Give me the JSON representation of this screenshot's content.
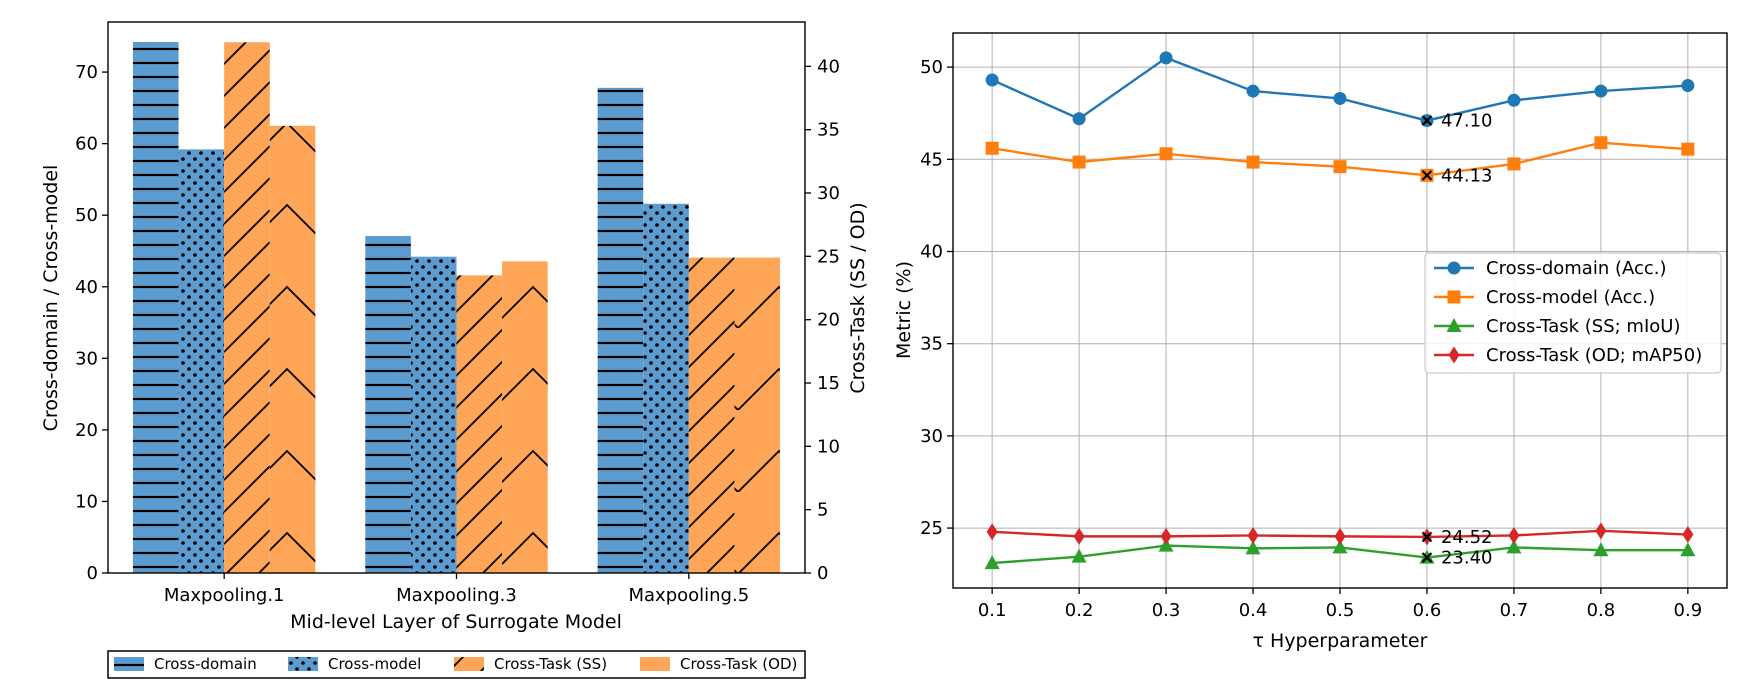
{
  "chart_data": [
    {
      "type": "bar",
      "title": "",
      "xlabel": "Mid-level Layer of Surrogate Model",
      "ylabel": "Cross-domain / Cross-model",
      "ylabel_right": "Cross-Task (SS / OD)",
      "categories": [
        "Maxpooling.1",
        "Maxpooling.3",
        "Maxpooling.5"
      ],
      "ylim": [
        0,
        77
      ],
      "ylim_right": [
        0,
        43.5
      ],
      "yticks": [
        "0",
        "10",
        "20",
        "30",
        "40",
        "50",
        "60",
        "70"
      ],
      "yticks_right": [
        "0",
        "5",
        "10",
        "15",
        "20",
        "25",
        "30",
        "35",
        "40"
      ],
      "legend_position": "bottom",
      "series": [
        {
          "name": "Cross-domain",
          "axis": "left",
          "color": "#5b9bd0",
          "hatch": "horizontal",
          "values": [
            74.2,
            47.1,
            67.8
          ]
        },
        {
          "name": "Cross-model",
          "axis": "left",
          "color": "#5b9bd0",
          "hatch": "dots",
          "values": [
            59.2,
            44.2,
            51.6
          ]
        },
        {
          "name": "Cross-Task (SS)",
          "axis": "right",
          "color": "#ffa557",
          "hatch": "diagonal",
          "values": [
            41.9,
            23.5,
            24.9
          ]
        },
        {
          "name": "Cross-Task (OD)",
          "axis": "right",
          "color": "#ffa557",
          "hatch": "chevron",
          "values": [
            35.3,
            24.6,
            24.9
          ]
        }
      ]
    },
    {
      "type": "line",
      "title": "",
      "xlabel": "τ Hyperparameter",
      "ylabel": "Metric (%)",
      "x": [
        0.1,
        0.2,
        0.3,
        0.4,
        0.5,
        0.6,
        0.7,
        0.8,
        0.9
      ],
      "xticks": [
        "0.1",
        "0.2",
        "0.3",
        "0.4",
        "0.5",
        "0.6",
        "0.7",
        "0.8",
        "0.9"
      ],
      "xlim": [
        0.055,
        0.945
      ],
      "ylim": [
        21.75,
        51.85
      ],
      "yticks": [
        "25",
        "30",
        "35",
        "40",
        "45",
        "50"
      ],
      "grid": true,
      "legend_position": "center-right",
      "series": [
        {
          "name": "Cross-domain (Acc.)",
          "color": "#1f77b4",
          "marker": "circle",
          "values": [
            49.3,
            47.2,
            50.5,
            48.7,
            48.3,
            47.1,
            48.2,
            48.7,
            49.0
          ]
        },
        {
          "name": "Cross-model (Acc.)",
          "color": "#ff7f0e",
          "marker": "square",
          "values": [
            45.6,
            44.85,
            45.3,
            44.85,
            44.6,
            44.13,
            44.75,
            45.9,
            45.55
          ]
        },
        {
          "name": "Cross-Task (SS; mIoU)",
          "color": "#2ca02c",
          "marker": "triangle",
          "values": [
            23.1,
            23.45,
            24.05,
            23.9,
            23.95,
            23.4,
            23.95,
            23.8,
            23.8
          ]
        },
        {
          "name": "Cross-Task (OD; mAP50)",
          "color": "#d62728",
          "marker": "diamond",
          "values": [
            24.8,
            24.55,
            24.55,
            24.6,
            24.55,
            24.52,
            24.6,
            24.85,
            24.65
          ]
        }
      ],
      "annotations": [
        {
          "x": 0.6,
          "y": 47.1,
          "text": "47.10"
        },
        {
          "x": 0.6,
          "y": 44.13,
          "text": "44.13"
        },
        {
          "x": 0.6,
          "y": 24.52,
          "text": "24.52"
        },
        {
          "x": 0.6,
          "y": 23.4,
          "text": "23.40"
        }
      ]
    }
  ]
}
